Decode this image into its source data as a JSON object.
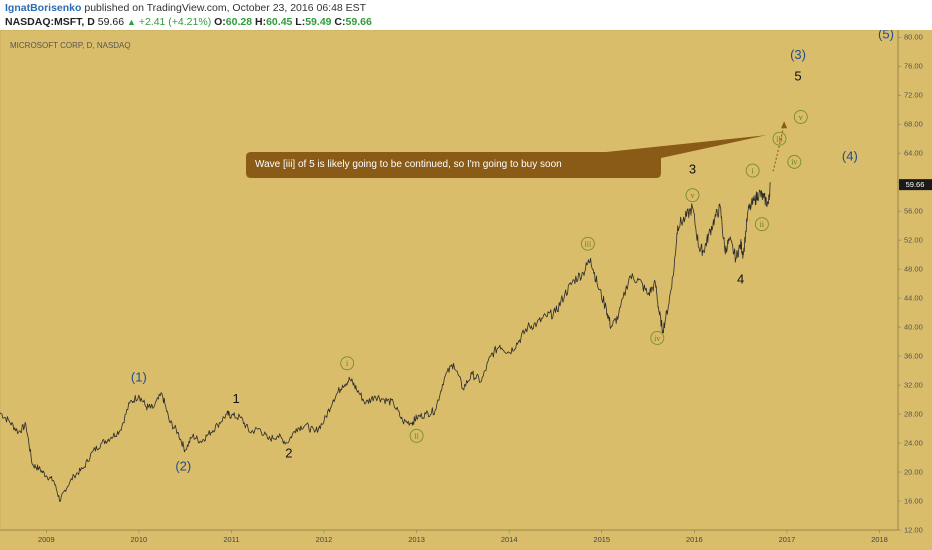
{
  "header": {
    "author": "IgnatBorisenko",
    "published": " published on TradingView.com, October 23, 2016 06:48 EST",
    "symbol": "NASDAQ:MSFT, D",
    "last": "59.66",
    "change": "+2.41 (+4.21%)",
    "open_label": "O:",
    "open": "60.28",
    "high_label": "H:",
    "high": "60.45",
    "low_label": "L:",
    "low": "59.49",
    "close_label": "C:",
    "close": "59.66"
  },
  "chart_data": {
    "type": "line",
    "title": "MICROSOFT CORP, D, NASDAQ",
    "price_label": "59.66",
    "ylim": [
      12,
      81
    ],
    "xlim": [
      2008.5,
      2018.2
    ],
    "y_ticks": [
      "12.00",
      "16.00",
      "20.00",
      "24.00",
      "28.00",
      "32.00",
      "36.00",
      "40.00",
      "44.00",
      "48.00",
      "52.00",
      "56.00",
      "60.00",
      "64.00",
      "68.00",
      "72.00",
      "76.00",
      "80.00"
    ],
    "x_ticks": [
      "2009",
      "2010",
      "2011",
      "2012",
      "2013",
      "2014",
      "2015",
      "2016",
      "2017",
      "2018"
    ],
    "series": [
      {
        "points": [
          [
            2008.5,
            28.2
          ],
          [
            2008.6,
            27.0
          ],
          [
            2008.7,
            25.5
          ],
          [
            2008.78,
            26.5
          ],
          [
            2008.85,
            21.0
          ],
          [
            2008.92,
            20.5
          ],
          [
            2009.0,
            19.5
          ],
          [
            2009.08,
            18.8
          ],
          [
            2009.15,
            16.0
          ],
          [
            2009.2,
            17.5
          ],
          [
            2009.3,
            19.5
          ],
          [
            2009.4,
            20.5
          ],
          [
            2009.5,
            22.8
          ],
          [
            2009.6,
            24.0
          ],
          [
            2009.7,
            24.8
          ],
          [
            2009.8,
            25.8
          ],
          [
            2009.9,
            29.5
          ],
          [
            2010.0,
            30.6
          ],
          [
            2010.08,
            29.0
          ],
          [
            2010.15,
            28.8
          ],
          [
            2010.25,
            30.8
          ],
          [
            2010.33,
            27.0
          ],
          [
            2010.42,
            25.5
          ],
          [
            2010.5,
            23.0
          ],
          [
            2010.58,
            25.0
          ],
          [
            2010.67,
            24.2
          ],
          [
            2010.75,
            25.2
          ],
          [
            2010.85,
            26.5
          ],
          [
            2010.95,
            28.0
          ],
          [
            2011.0,
            27.8
          ],
          [
            2011.1,
            27.5
          ],
          [
            2011.2,
            25.5
          ],
          [
            2011.3,
            26.0
          ],
          [
            2011.4,
            24.5
          ],
          [
            2011.5,
            25.0
          ],
          [
            2011.6,
            24.0
          ],
          [
            2011.7,
            26.0
          ],
          [
            2011.8,
            26.5
          ],
          [
            2011.9,
            25.5
          ],
          [
            2012.0,
            27.0
          ],
          [
            2012.1,
            30.0
          ],
          [
            2012.2,
            32.0
          ],
          [
            2012.28,
            32.8
          ],
          [
            2012.35,
            31.5
          ],
          [
            2012.45,
            29.5
          ],
          [
            2012.55,
            30.5
          ],
          [
            2012.65,
            30.0
          ],
          [
            2012.75,
            29.5
          ],
          [
            2012.85,
            27.0
          ],
          [
            2012.95,
            26.8
          ],
          [
            2013.0,
            27.5
          ],
          [
            2013.1,
            28.0
          ],
          [
            2013.2,
            28.5
          ],
          [
            2013.3,
            33.0
          ],
          [
            2013.4,
            35.0
          ],
          [
            2013.5,
            31.5
          ],
          [
            2013.6,
            33.5
          ],
          [
            2013.7,
            32.5
          ],
          [
            2013.8,
            36.0
          ],
          [
            2013.9,
            37.5
          ],
          [
            2014.0,
            36.5
          ],
          [
            2014.1,
            38.0
          ],
          [
            2014.2,
            40.0
          ],
          [
            2014.3,
            40.5
          ],
          [
            2014.4,
            41.5
          ],
          [
            2014.5,
            42.0
          ],
          [
            2014.6,
            44.5
          ],
          [
            2014.7,
            46.5
          ],
          [
            2014.8,
            47.5
          ],
          [
            2014.88,
            49.5
          ],
          [
            2014.95,
            46.0
          ],
          [
            2015.05,
            42.5
          ],
          [
            2015.1,
            40.0
          ],
          [
            2015.18,
            41.5
          ],
          [
            2015.3,
            47.0
          ],
          [
            2015.4,
            46.5
          ],
          [
            2015.5,
            44.5
          ],
          [
            2015.58,
            46.0
          ],
          [
            2015.62,
            42.0
          ],
          [
            2015.66,
            39.5
          ],
          [
            2015.72,
            43.0
          ],
          [
            2015.78,
            48.0
          ],
          [
            2015.82,
            54.0
          ],
          [
            2015.9,
            55.0
          ],
          [
            2015.98,
            56.5
          ],
          [
            2016.05,
            51.0
          ],
          [
            2016.1,
            50.5
          ],
          [
            2016.15,
            52.5
          ],
          [
            2016.22,
            55.0
          ],
          [
            2016.28,
            56.5
          ],
          [
            2016.33,
            50.5
          ],
          [
            2016.38,
            52.0
          ],
          [
            2016.45,
            49.5
          ],
          [
            2016.5,
            51.5
          ],
          [
            2016.53,
            50.0
          ],
          [
            2016.58,
            56.0
          ],
          [
            2016.65,
            57.5
          ],
          [
            2016.7,
            58.5
          ],
          [
            2016.75,
            57.8
          ],
          [
            2016.8,
            57.0
          ],
          [
            2016.82,
            59.66
          ]
        ]
      }
    ],
    "annotations": {
      "callout": "Wave [iii] of 5 is likely going to be continued, so I'm going to buy soon",
      "wave_labels": [
        {
          "text": "(1)",
          "x": 2010.0,
          "y": 32.5,
          "color": "#1f4e8c"
        },
        {
          "text": "(2)",
          "x": 2010.48,
          "y": 20.2,
          "color": "#1f4e8c"
        },
        {
          "text": "1",
          "x": 2011.05,
          "y": 29.5,
          "color": "#111111"
        },
        {
          "text": "2",
          "x": 2011.62,
          "y": 22.0,
          "color": "#111111"
        },
        {
          "text": "3",
          "x": 2015.98,
          "y": 61.2,
          "color": "#111111"
        },
        {
          "text": "4",
          "x": 2016.5,
          "y": 46.0,
          "color": "#111111"
        },
        {
          "text": "5",
          "x": 2017.12,
          "y": 74.0,
          "color": "#111111"
        },
        {
          "text": "(3)",
          "x": 2017.12,
          "y": 77.0,
          "color": "#1f4e8c"
        },
        {
          "text": "(4)",
          "x": 2017.68,
          "y": 63.0,
          "color": "#1f4e8c"
        },
        {
          "text": "(5)",
          "x": 2018.07,
          "y": 79.8,
          "color": "#1f4e8c"
        }
      ],
      "circle_labels": [
        {
          "text": "i",
          "x": 2012.25,
          "y": 35.0
        },
        {
          "text": "ii",
          "x": 2013.0,
          "y": 25.0
        },
        {
          "text": "iii",
          "x": 2014.85,
          "y": 51.5
        },
        {
          "text": "iv",
          "x": 2015.6,
          "y": 38.5
        },
        {
          "text": "v",
          "x": 2015.98,
          "y": 58.2
        },
        {
          "text": "i",
          "x": 2016.63,
          "y": 61.6
        },
        {
          "text": "ii",
          "x": 2016.73,
          "y": 54.2
        },
        {
          "text": "iii",
          "x": 2016.92,
          "y": 66.0
        },
        {
          "text": "iv",
          "x": 2017.08,
          "y": 62.8
        },
        {
          "text": "v",
          "x": 2017.15,
          "y": 69.0
        }
      ]
    }
  },
  "colors": {
    "background": "#d9bd6b",
    "price_line": "#2b2b2b",
    "axis": "#8a7a4a",
    "callout": "#8a5a17",
    "circle": "#7a8c2e",
    "price_label_bg": "#1a1a1a"
  }
}
